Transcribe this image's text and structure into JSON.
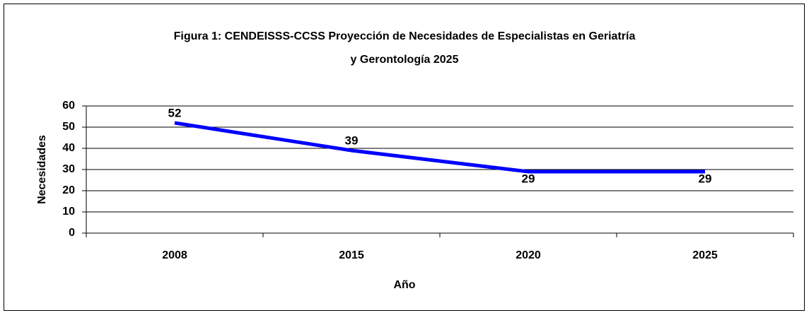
{
  "chart_data": {
    "type": "line",
    "title": [
      "Figura 1: CENDEISSS-CCSS Proyección de Necesidades de Especialistas en Geriatría",
      "y Gerontología 2025"
    ],
    "x_label": "Año",
    "y_label": "Necesidades",
    "categories": [
      "2008",
      "2015",
      "2020",
      "2025"
    ],
    "series": [
      {
        "name": "Necesidades",
        "color": "#0000ff",
        "values": [
          52,
          39,
          29,
          29
        ]
      }
    ],
    "ylim": [
      0,
      60
    ],
    "yticks": [
      0,
      10,
      20,
      30,
      40,
      50,
      60
    ],
    "grid": true
  }
}
